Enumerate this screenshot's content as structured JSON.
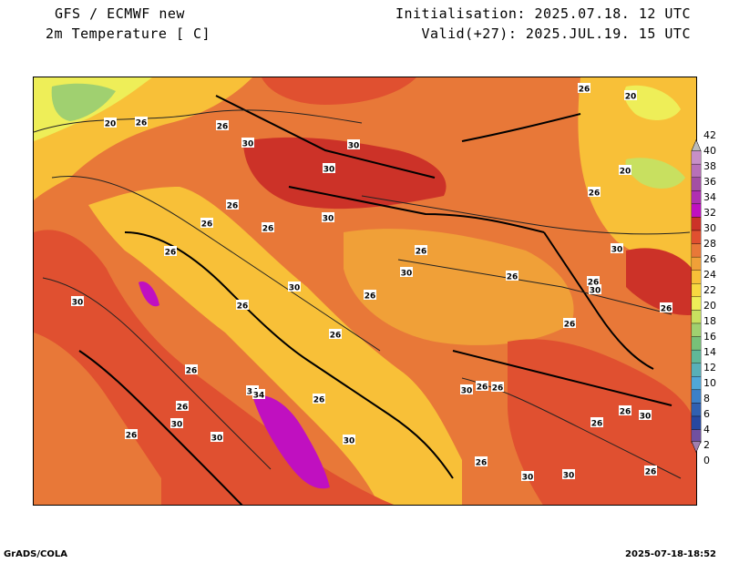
{
  "header": {
    "title_line1": "GFS / ECMWF new",
    "title_line2": "2m Temperature [ C]",
    "init": "Initialisation: 2025.07.18. 12 UTC",
    "valid": "Valid(+27): 2025.JUL.19. 15 UTC"
  },
  "footer": {
    "credit": "GrADS/COLA",
    "timestamp": "2025-07-18-18:52"
  },
  "colorbar": {
    "levels": [
      "42",
      "40",
      "38",
      "36",
      "34",
      "32",
      "30",
      "28",
      "26",
      "24",
      "22",
      "20",
      "18",
      "16",
      "14",
      "12",
      "10",
      "8",
      "6",
      "4",
      "2",
      "0"
    ],
    "colors": [
      "#c78fc7",
      "#b870b8",
      "#a44fa4",
      "#b030b0",
      "#c010c0",
      "#cc3228",
      "#e05030",
      "#e87838",
      "#f0a038",
      "#f8c038",
      "#f8d840",
      "#eeee58",
      "#c8e060",
      "#a0d070",
      "#78c078",
      "#60b898",
      "#58b0b8",
      "#50a8d8",
      "#3c80c8",
      "#3060b0",
      "#2848a0",
      "#7050a0"
    ]
  },
  "map_labels": [
    {
      "text": "20"
    },
    {
      "text": "26"
    },
    {
      "text": "26"
    },
    {
      "text": "30"
    },
    {
      "text": "30"
    },
    {
      "text": "30"
    },
    {
      "text": "30"
    },
    {
      "text": "26"
    },
    {
      "text": "26"
    },
    {
      "text": "26"
    },
    {
      "text": "26"
    },
    {
      "text": "26"
    },
    {
      "text": "30"
    },
    {
      "text": "26"
    },
    {
      "text": "26"
    },
    {
      "text": "30"
    },
    {
      "text": "26"
    },
    {
      "text": "26"
    },
    {
      "text": "30"
    },
    {
      "text": "26"
    },
    {
      "text": "30"
    },
    {
      "text": "26"
    },
    {
      "text": "34"
    },
    {
      "text": "34"
    },
    {
      "text": "26"
    },
    {
      "text": "30"
    },
    {
      "text": "26"
    },
    {
      "text": "30"
    },
    {
      "text": "30"
    },
    {
      "text": "26"
    },
    {
      "text": "26"
    },
    {
      "text": "26"
    },
    {
      "text": "26"
    },
    {
      "text": "20"
    },
    {
      "text": "20"
    },
    {
      "text": "26"
    },
    {
      "text": "30"
    },
    {
      "text": "26"
    },
    {
      "text": "26"
    },
    {
      "text": "26"
    },
    {
      "text": "30"
    },
    {
      "text": "26"
    },
    {
      "text": "26"
    },
    {
      "text": "30"
    },
    {
      "text": "30"
    },
    {
      "text": "30"
    },
    {
      "text": "26"
    }
  ]
}
